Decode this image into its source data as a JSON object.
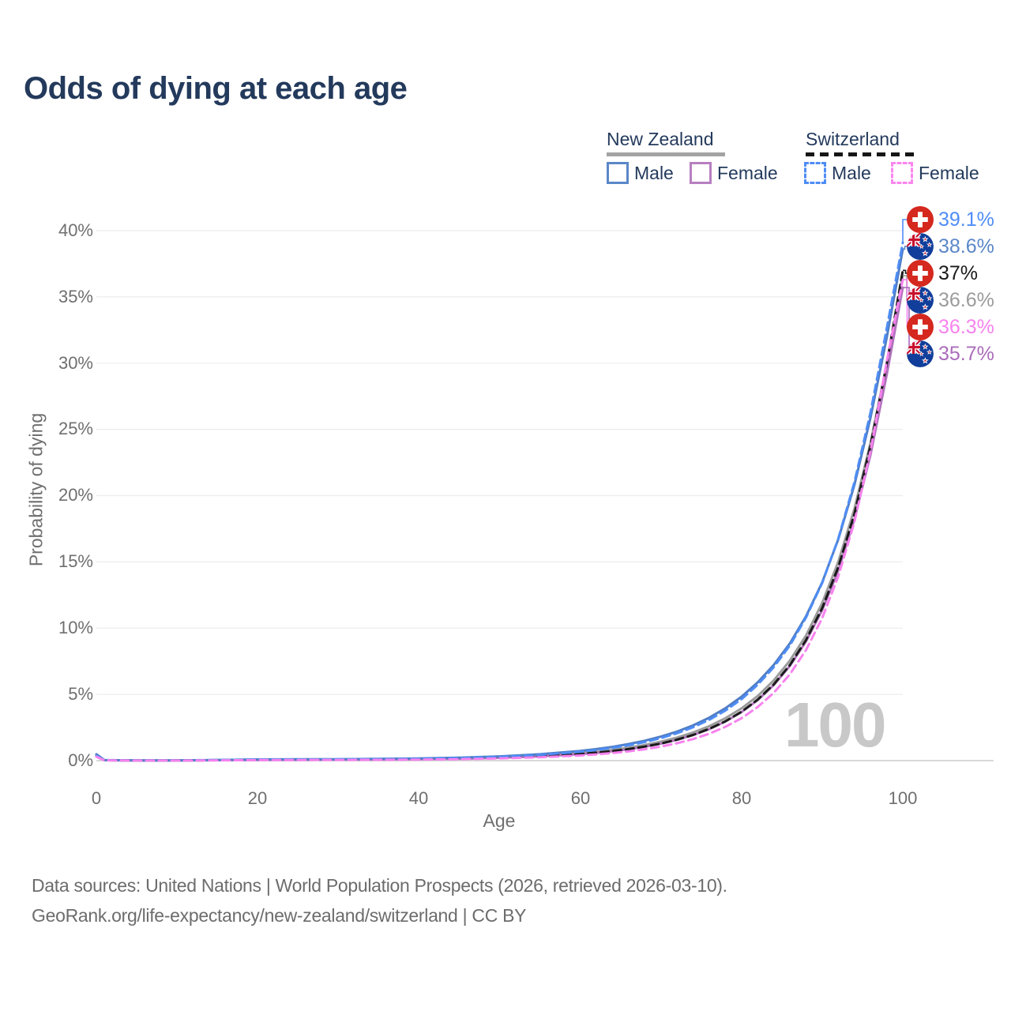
{
  "title": "Odds of dying at each age",
  "watermark": "100",
  "legend": {
    "nz": {
      "label": "New Zealand",
      "line_color": "#a3a3a3",
      "items": [
        {
          "label": "Male",
          "color": "#5b87c8",
          "dash": false
        },
        {
          "label": "Female",
          "color": "#b77fc0",
          "dash": false
        }
      ]
    },
    "ch": {
      "label": "Switzerland",
      "line_color": "#161616",
      "items": [
        {
          "label": "Male",
          "color": "#4f8df5",
          "dash": true
        },
        {
          "label": "Female",
          "color": "#fb87f0",
          "dash": true
        }
      ]
    }
  },
  "axes": {
    "x": {
      "title": "Age",
      "ticks": [
        {
          "value": 0,
          "label": "0"
        },
        {
          "value": 20,
          "label": "20"
        },
        {
          "value": 40,
          "label": "40"
        },
        {
          "value": 60,
          "label": "60"
        },
        {
          "value": 80,
          "label": "80"
        },
        {
          "value": 100,
          "label": "100"
        }
      ]
    },
    "y": {
      "title": "Probability of dying",
      "ticks": [
        {
          "value": 40,
          "label": "40%"
        },
        {
          "value": 35,
          "label": "35%"
        },
        {
          "value": 30,
          "label": "30%"
        },
        {
          "value": 25,
          "label": "25%"
        },
        {
          "value": 20,
          "label": "20%"
        },
        {
          "value": 15,
          "label": "15%"
        },
        {
          "value": 10,
          "label": "10%"
        },
        {
          "value": 5,
          "label": "5%"
        },
        {
          "value": 0,
          "label": "0%"
        }
      ]
    }
  },
  "chart_data": {
    "type": "line",
    "title": "Odds of dying at each age",
    "xlabel": "Age",
    "ylabel": "Probability of dying",
    "xlim": [
      0,
      100
    ],
    "ylim": [
      0,
      40
    ],
    "grid": "horizontal",
    "legend_position": "top-right",
    "ages": [
      0,
      1,
      5,
      10,
      15,
      20,
      25,
      30,
      35,
      40,
      45,
      50,
      55,
      60,
      62,
      64,
      66,
      68,
      70,
      72,
      74,
      76,
      78,
      80,
      82,
      84,
      86,
      88,
      90,
      92,
      94,
      96,
      98,
      100
    ],
    "series": [
      {
        "id": "nz-total",
        "name": "New Zealand Total",
        "country": "New Zealand",
        "sex": "total",
        "color": "#9b9b9b",
        "dash": false,
        "end_value_pct": 36.6,
        "values": [
          0.43,
          0.035,
          0.009,
          0.011,
          0.04,
          0.07,
          0.08,
          0.09,
          0.1,
          0.13,
          0.17,
          0.25,
          0.38,
          0.57,
          0.68,
          0.81,
          0.98,
          1.18,
          1.43,
          1.74,
          2.12,
          2.6,
          3.2,
          3.94,
          4.87,
          6.05,
          7.55,
          9.45,
          11.9,
          15.0,
          19.0,
          24.0,
          29.9,
          36.6
        ]
      },
      {
        "id": "nz-female",
        "name": "New Zealand Female",
        "country": "New Zealand",
        "sex": "female",
        "color": "#b173bd",
        "dash": false,
        "end_value_pct": 35.7,
        "values": [
          0.4,
          0.03,
          0.008,
          0.01,
          0.03,
          0.05,
          0.056,
          0.066,
          0.08,
          0.1,
          0.14,
          0.21,
          0.32,
          0.49,
          0.59,
          0.71,
          0.86,
          1.05,
          1.28,
          1.57,
          1.93,
          2.38,
          2.95,
          3.66,
          4.56,
          5.7,
          7.15,
          9.0,
          11.35,
          14.35,
          18.2,
          23.1,
          29.1,
          35.7
        ]
      },
      {
        "id": "nz-male",
        "name": "New Zealand Male",
        "country": "New Zealand",
        "sex": "male",
        "color": "#4f7dc3",
        "dash": false,
        "end_value_pct": 38.6,
        "values": [
          0.48,
          0.04,
          0.01,
          0.012,
          0.05,
          0.09,
          0.1,
          0.11,
          0.13,
          0.16,
          0.22,
          0.32,
          0.48,
          0.73,
          0.87,
          1.04,
          1.25,
          1.5,
          1.81,
          2.19,
          2.66,
          3.24,
          3.95,
          4.82,
          5.9,
          7.22,
          8.85,
          10.9,
          13.45,
          16.7,
          20.8,
          25.9,
          31.9,
          38.6
        ]
      },
      {
        "id": "ch-total",
        "name": "Switzerland Total",
        "country": "Switzerland",
        "sex": "total",
        "color": "#1a1a1a",
        "dash": true,
        "end_value_pct": 37.0,
        "values": [
          0.33,
          0.028,
          0.007,
          0.009,
          0.03,
          0.06,
          0.065,
          0.072,
          0.085,
          0.105,
          0.145,
          0.215,
          0.33,
          0.5,
          0.6,
          0.72,
          0.87,
          1.06,
          1.29,
          1.58,
          1.94,
          2.4,
          2.97,
          3.69,
          4.6,
          5.75,
          7.22,
          9.1,
          11.5,
          14.6,
          18.6,
          23.8,
          29.9,
          37.0
        ]
      },
      {
        "id": "ch-male",
        "name": "Switzerland Male",
        "country": "Switzerland",
        "sex": "male",
        "color": "#4f8df5",
        "dash": true,
        "end_value_pct": 39.1,
        "values": [
          0.38,
          0.03,
          0.009,
          0.011,
          0.045,
          0.085,
          0.092,
          0.1,
          0.12,
          0.145,
          0.2,
          0.29,
          0.44,
          0.67,
          0.8,
          0.96,
          1.16,
          1.4,
          1.7,
          2.06,
          2.52,
          3.08,
          3.78,
          4.64,
          5.72,
          7.05,
          8.7,
          10.8,
          13.4,
          16.75,
          21.0,
          26.3,
          32.6,
          39.1
        ]
      },
      {
        "id": "ch-female",
        "name": "Switzerland Female",
        "country": "Switzerland",
        "sex": "female",
        "color": "#f782ee",
        "dash": true,
        "end_value_pct": 36.3,
        "values": [
          0.3,
          0.025,
          0.006,
          0.008,
          0.02,
          0.04,
          0.045,
          0.052,
          0.062,
          0.078,
          0.11,
          0.165,
          0.255,
          0.39,
          0.47,
          0.57,
          0.7,
          0.86,
          1.06,
          1.31,
          1.63,
          2.03,
          2.55,
          3.2,
          4.04,
          5.12,
          6.52,
          8.35,
          10.75,
          13.9,
          18.0,
          23.4,
          30.1,
          36.3
        ]
      }
    ]
  },
  "end_labels": [
    {
      "value": "39.1%",
      "pct": 39.1,
      "color": "#4f8df5",
      "flag": "switzerland-flag-icon",
      "series": "Switzerland Male"
    },
    {
      "value": "38.6%",
      "pct": 38.6,
      "color": "#5b87c8",
      "flag": "new-zealand-flag-icon",
      "series": "New Zealand Male"
    },
    {
      "value": "37%",
      "pct": 37.0,
      "color": "#1a1a1a",
      "flag": "switzerland-flag-icon",
      "series": "Switzerland Total"
    },
    {
      "value": "36.6%",
      "pct": 36.6,
      "color": "#9b9b9b",
      "flag": "new-zealand-flag-icon",
      "series": "New Zealand Total"
    },
    {
      "value": "36.3%",
      "pct": 36.3,
      "color": "#f782ee",
      "flag": "switzerland-flag-icon",
      "series": "Switzerland Female"
    },
    {
      "value": "35.7%",
      "pct": 35.7,
      "color": "#aa6cba",
      "flag": "new-zealand-flag-icon",
      "series": "New Zealand Female"
    }
  ],
  "footer": {
    "line1": "Data sources: United Nations | World Population Prospects (2026, retrieved 2026-03-10).",
    "line2": "GeoRank.org/life-expectancy/new-zealand/switzerland | CC BY"
  }
}
